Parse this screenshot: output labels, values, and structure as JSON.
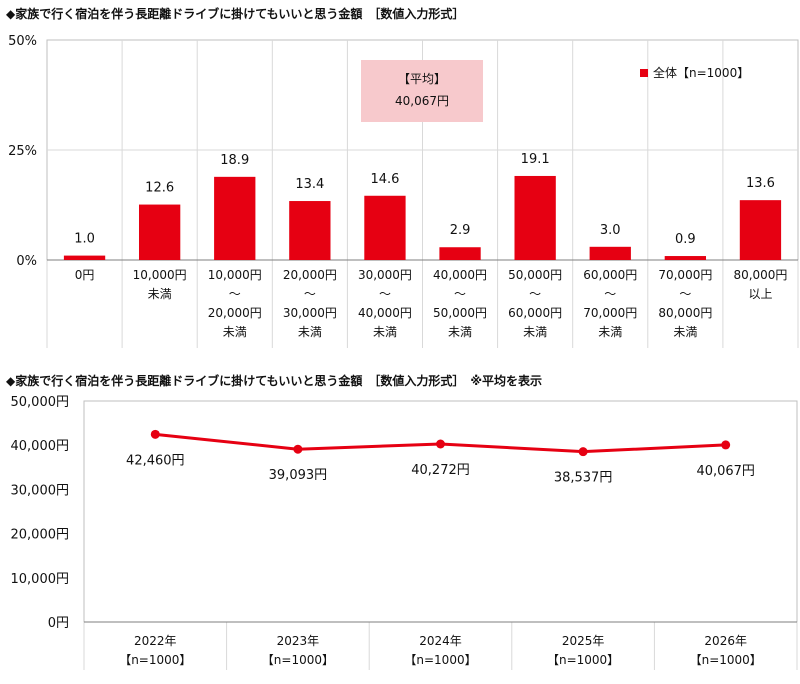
{
  "titles": {
    "chart1": "◆家族で行く宿泊を伴う長距離ドライブに掛けてもいいと思う金額　［数値入力形式］",
    "chart2": "◆家族で行く宿泊を伴う長距離ドライブに掛けてもいいと思う金額　［数値入力形式］　※平均を表示"
  },
  "colors": {
    "bar": "#e60012",
    "line": "#e60012",
    "avg_box": "#f7c9cc"
  },
  "chart_data": [
    {
      "type": "bar",
      "ylim": [
        0,
        50
      ],
      "yticks": [
        "0%",
        "25%",
        "50%"
      ],
      "legend": "全体【n=1000】",
      "legend_position": "top-right",
      "annotation": {
        "label": "【平均】",
        "value": "40,067円"
      },
      "categories": [
        [
          "0円"
        ],
        [
          "10,000円",
          "未満"
        ],
        [
          "10,000円",
          "～",
          "20,000円",
          "未満"
        ],
        [
          "20,000円",
          "～",
          "30,000円",
          "未満"
        ],
        [
          "30,000円",
          "～",
          "40,000円",
          "未満"
        ],
        [
          "40,000円",
          "～",
          "50,000円",
          "未満"
        ],
        [
          "50,000円",
          "～",
          "60,000円",
          "未満"
        ],
        [
          "60,000円",
          "～",
          "70,000円",
          "未満"
        ],
        [
          "70,000円",
          "～",
          "80,000円",
          "未満"
        ],
        [
          "80,000円",
          "以上"
        ]
      ],
      "values": [
        1.0,
        12.6,
        18.9,
        13.4,
        14.6,
        2.9,
        19.1,
        3.0,
        0.9,
        13.6
      ],
      "value_labels": [
        "1.0",
        "12.6",
        "18.9",
        "13.4",
        "14.6",
        "2.9",
        "19.1",
        "3.0",
        "0.9",
        "13.6"
      ]
    },
    {
      "type": "line",
      "ylim": [
        0,
        50000
      ],
      "yticks": [
        "0円",
        "10,000円",
        "20,000円",
        "30,000円",
        "40,000円",
        "50,000円"
      ],
      "categories": [
        [
          "2022年",
          "【n=1000】"
        ],
        [
          "2023年",
          "【n=1000】"
        ],
        [
          "2024年",
          "【n=1000】"
        ],
        [
          "2025年",
          "【n=1000】"
        ],
        [
          "2026年",
          "【n=1000】"
        ]
      ],
      "values": [
        42460,
        39093,
        40272,
        38537,
        40067
      ],
      "value_labels": [
        "42,460円",
        "39,093円",
        "40,272円",
        "38,537円",
        "40,067円"
      ]
    }
  ]
}
